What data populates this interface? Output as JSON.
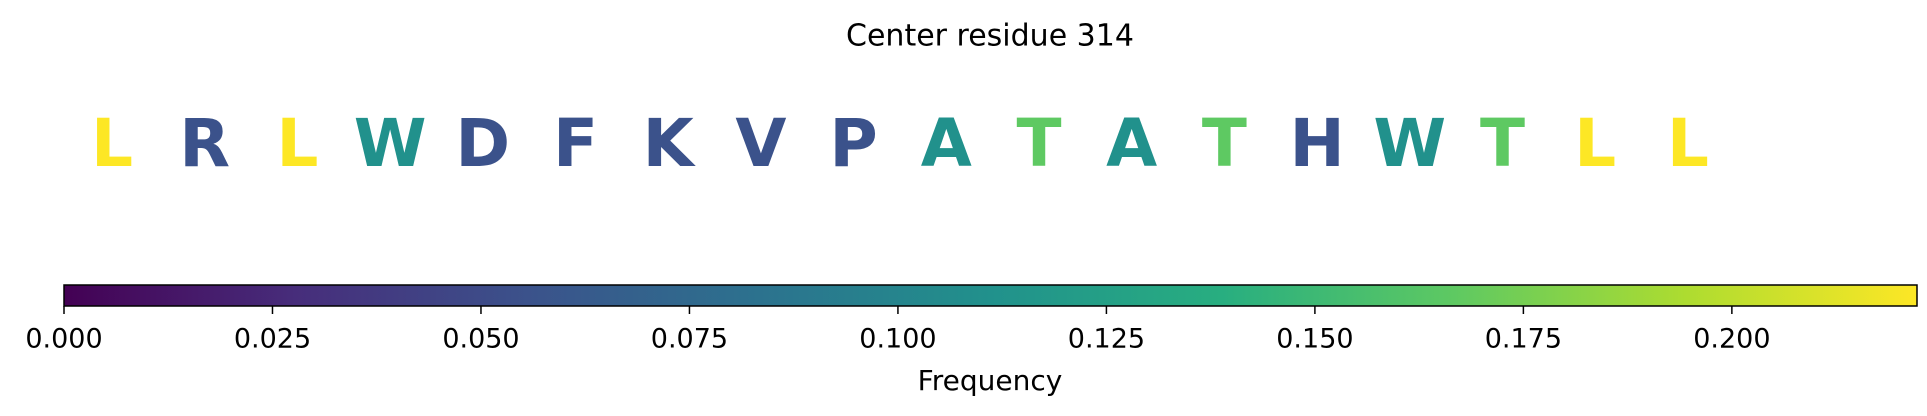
{
  "chart_data": {
    "type": "colored-sequence",
    "title": "Center residue 314",
    "categories": [
      "L",
      "R",
      "L",
      "W",
      "D",
      "F",
      "K",
      "V",
      "P",
      "A",
      "T",
      "A",
      "T",
      "H",
      "W",
      "T",
      "L",
      "L"
    ],
    "values": [
      0.2222,
      0.0556,
      0.2222,
      0.1111,
      0.0556,
      0.0556,
      0.0556,
      0.0556,
      0.0556,
      0.1111,
      0.1667,
      0.1111,
      0.1667,
      0.0556,
      0.1111,
      0.1667,
      0.2222,
      0.2222
    ],
    "colormap": "viridis",
    "xlabel": "Frequency",
    "xlim": [
      0,
      0.2222
    ],
    "xticks": [
      {
        "value": 0,
        "label": "0.000"
      },
      0.025,
      {
        "value": 0.05,
        "label": "0.050"
      },
      0.075,
      {
        "value": 0.1,
        "label": "0.100"
      },
      0.125,
      {
        "value": 0.15,
        "label": "0.150"
      },
      0.175,
      {
        "value": 0.2,
        "label": "0.200"
      }
    ]
  }
}
